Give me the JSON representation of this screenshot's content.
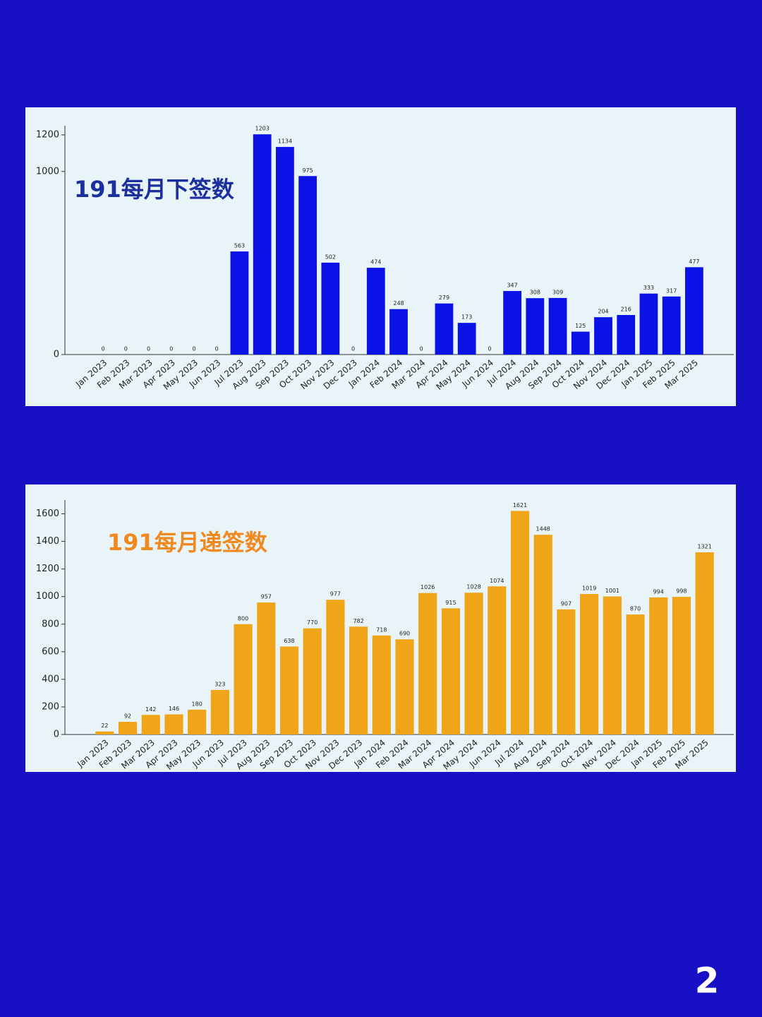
{
  "chart_data": [
    {
      "type": "bar",
      "title": "191每月下签数",
      "color": "#0b12e6",
      "categories": [
        "Jan 2023",
        "Feb 2023",
        "Mar 2023",
        "Apr 2023",
        "May 2023",
        "Jun 2023",
        "Jul 2023",
        "Aug 2023",
        "Sep 2023",
        "Oct 2023",
        "Nov 2023",
        "Dec 2023",
        "Jan 2024",
        "Feb 2024",
        "Mar 2024",
        "Apr 2024",
        "May 2024",
        "Jun 2024",
        "Jul 2024",
        "Aug 2024",
        "Sep 2024",
        "Oct 2024",
        "Nov 2024",
        "Dec 2024",
        "Jan 2025",
        "Feb 2025",
        "Mar 2025"
      ],
      "values": [
        0,
        0,
        0,
        0,
        0,
        0,
        563,
        1203,
        1134,
        975,
        502,
        0,
        474,
        248,
        0,
        279,
        173,
        0,
        347,
        308,
        309,
        125,
        204,
        216,
        333,
        317,
        477
      ],
      "ylim": [
        0,
        1250
      ],
      "yticks": [
        0,
        1000,
        1200
      ]
    },
    {
      "type": "bar",
      "title": "191每月递签数",
      "color": "#f0a418",
      "categories": [
        "Jan 2023",
        "Feb 2023",
        "Mar 2023",
        "Apr 2023",
        "May 2023",
        "Jun 2023",
        "Jul 2023",
        "Aug 2023",
        "Sep 2023",
        "Oct 2023",
        "Nov 2023",
        "Dec 2023",
        "Jan 2024",
        "Feb 2024",
        "Mar 2024",
        "Apr 2024",
        "May 2024",
        "Jun 2024",
        "Jul 2024",
        "Aug 2024",
        "Sep 2024",
        "Oct 2024",
        "Nov 2024",
        "Dec 2024",
        "Jan 2025",
        "Feb 2025",
        "Mar 2025"
      ],
      "values": [
        22,
        92,
        142,
        146,
        180,
        323,
        800,
        957,
        638,
        770,
        977,
        782,
        718,
        690,
        1026,
        915,
        1028,
        1074,
        1621,
        1448,
        907,
        1019,
        1001,
        870,
        994,
        998,
        1321
      ],
      "ylim": [
        0,
        1700
      ],
      "yticks": [
        0,
        200,
        400,
        600,
        800,
        1000,
        1200,
        1400,
        1600
      ]
    }
  ],
  "page_number": "2"
}
